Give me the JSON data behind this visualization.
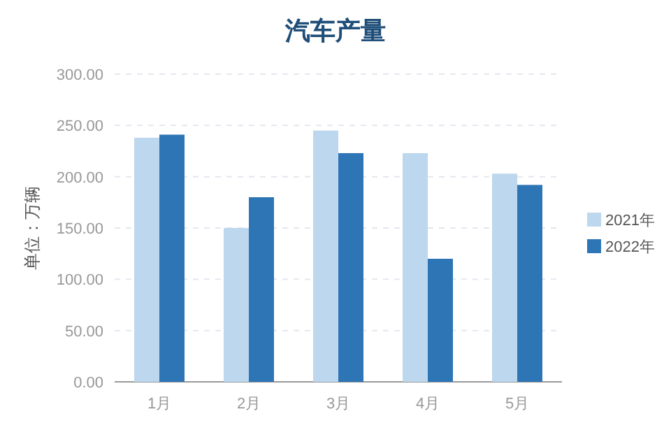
{
  "chart_data": {
    "type": "bar",
    "title": "汽车产量",
    "ylabel": "单位：万辆",
    "categories": [
      "1月",
      "2月",
      "3月",
      "4月",
      "5月"
    ],
    "series": [
      {
        "name": "2021年",
        "color": "#bdd7ee",
        "values": [
          238,
          150,
          245,
          223,
          203
        ]
      },
      {
        "name": "2022年",
        "color": "#2e75b6",
        "values": [
          241,
          180,
          223,
          120,
          192
        ]
      }
    ],
    "ylim": [
      0,
      300
    ],
    "yticks": [
      {
        "value": 0,
        "label": "0.00"
      },
      {
        "value": 50,
        "label": "50.00"
      },
      {
        "value": 100,
        "label": "100.00"
      },
      {
        "value": 150,
        "label": "150.00"
      },
      {
        "value": 200,
        "label": "200.00"
      },
      {
        "value": 250,
        "label": "250.00"
      },
      {
        "value": 300,
        "label": "300.00"
      }
    ],
    "grid": "y",
    "legend": "right"
  }
}
